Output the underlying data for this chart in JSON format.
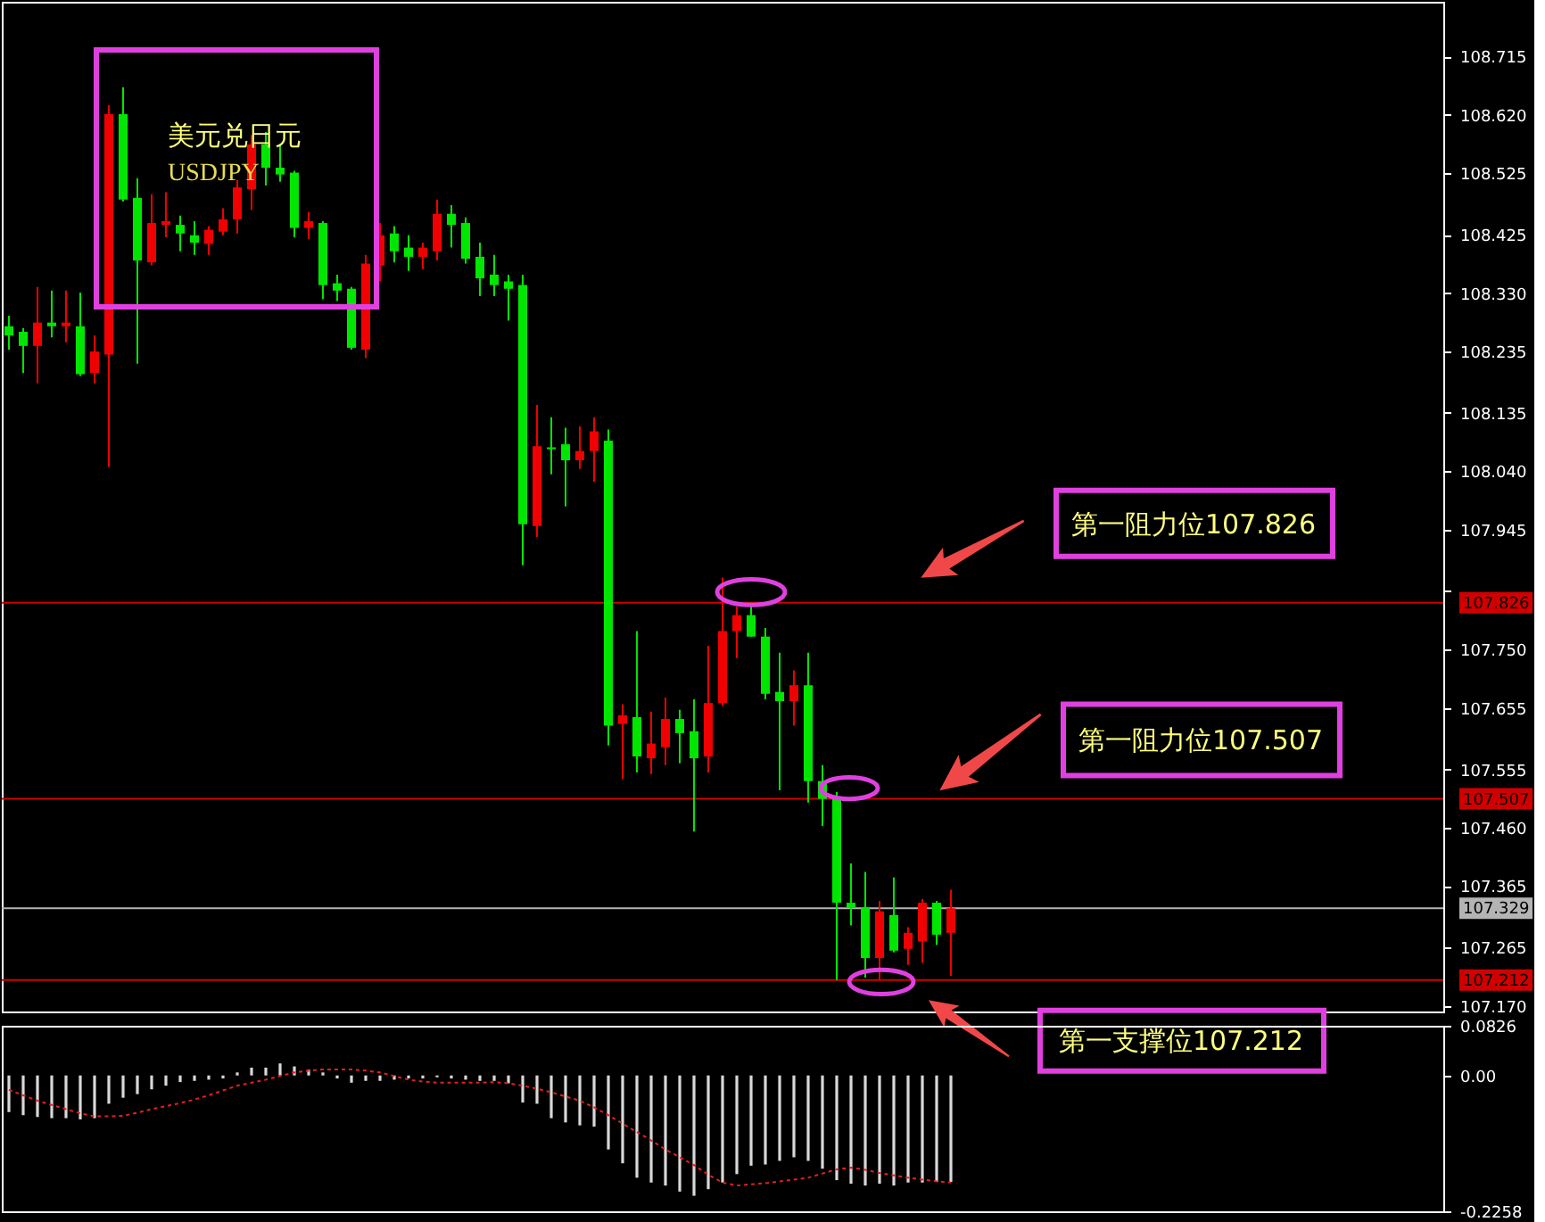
{
  "chart_data": [
    {
      "type": "candlestick",
      "title": "美元兑日元",
      "subtitle": "USDJPY",
      "categories": [
        null,
        null,
        null,
        null,
        null,
        null,
        null,
        null,
        null,
        null,
        null,
        null,
        null,
        null,
        null,
        null,
        null,
        null,
        null,
        null,
        null,
        null,
        null,
        null,
        null,
        null,
        null,
        null,
        null,
        null,
        null,
        null,
        null,
        null,
        null,
        null,
        null,
        null,
        null,
        null,
        null,
        null,
        null,
        null,
        null,
        null,
        null,
        null,
        null,
        null,
        null,
        null,
        null,
        null,
        null,
        null,
        null,
        null,
        null,
        null,
        null,
        null,
        null,
        null,
        null,
        null,
        null,
        null,
        null,
        null,
        null,
        null,
        null,
        null,
        null,
        null,
        null,
        null,
        null,
        null,
        null,
        null,
        null,
        null,
        null,
        null,
        null,
        null,
        null,
        null,
        null,
        null,
        null,
        null,
        null,
        null,
        null,
        null,
        null,
        null,
        null
      ],
      "ohlc": [
        [
          108.276,
          108.293,
          108.238,
          108.261
        ],
        [
          108.267,
          108.273,
          108.2,
          108.244
        ],
        [
          108.244,
          108.34,
          108.183,
          108.282
        ],
        [
          108.282,
          108.334,
          108.258,
          108.276
        ],
        [
          108.276,
          108.334,
          108.25,
          108.282
        ],
        [
          108.276,
          108.331,
          108.195,
          108.198
        ],
        [
          108.2,
          108.261,
          108.183,
          108.235
        ],
        [
          108.23,
          108.636,
          108.047,
          108.621
        ],
        [
          108.621,
          108.665,
          108.479,
          108.482
        ],
        [
          108.485,
          108.517,
          108.215,
          108.383
        ],
        [
          108.38,
          108.491,
          108.375,
          108.444
        ],
        [
          108.441,
          108.494,
          108.421,
          108.447
        ],
        [
          108.441,
          108.456,
          108.398,
          108.427
        ],
        [
          108.424,
          108.447,
          108.392,
          108.412
        ],
        [
          108.41,
          108.439,
          108.392,
          108.433
        ],
        [
          108.43,
          108.468,
          108.424,
          108.45
        ],
        [
          108.45,
          108.514,
          108.427,
          108.502
        ],
        [
          108.499,
          108.587,
          108.465,
          108.572
        ],
        [
          108.572,
          108.592,
          108.505,
          108.534
        ],
        [
          108.534,
          108.572,
          108.511,
          108.523
        ],
        [
          108.526,
          108.529,
          108.421,
          108.436
        ],
        [
          108.436,
          108.462,
          108.418,
          108.447
        ],
        [
          108.444,
          108.447,
          108.32,
          108.343
        ],
        [
          108.346,
          108.36,
          108.317,
          108.334
        ],
        [
          108.337,
          108.34,
          108.238,
          108.241
        ],
        [
          108.238,
          108.392,
          108.224,
          108.378
        ],
        [
          108.375,
          108.444,
          108.349,
          108.424
        ],
        [
          108.427,
          108.439,
          108.38,
          108.398
        ],
        [
          108.404,
          108.424,
          108.366,
          108.389
        ],
        [
          108.389,
          108.412,
          108.369,
          108.404
        ],
        [
          108.398,
          108.482,
          108.383,
          108.459
        ],
        [
          108.459,
          108.473,
          108.404,
          108.441
        ],
        [
          108.444,
          108.453,
          108.378,
          108.386
        ],
        [
          108.389,
          108.412,
          108.325,
          108.354
        ],
        [
          108.36,
          108.392,
          108.325,
          108.343
        ],
        [
          108.349,
          108.36,
          108.285,
          108.337
        ],
        [
          108.343,
          108.36,
          107.887,
          107.954
        ],
        [
          107.951,
          108.148,
          107.933,
          108.081
        ],
        [
          108.079,
          108.128,
          108.035,
          108.076
        ],
        [
          108.084,
          108.111,
          107.983,
          108.058
        ],
        [
          108.058,
          108.113,
          108.044,
          108.073
        ],
        [
          108.073,
          108.128,
          108.023,
          108.105
        ],
        [
          108.09,
          108.108,
          107.594,
          107.626
        ],
        [
          107.629,
          107.661,
          107.539,
          107.643
        ],
        [
          107.64,
          107.78,
          107.55,
          107.576
        ],
        [
          107.573,
          107.649,
          107.547,
          107.597
        ],
        [
          107.591,
          107.672,
          107.562,
          107.637
        ],
        [
          107.637,
          107.652,
          107.565,
          107.614
        ],
        [
          107.617,
          107.669,
          107.454,
          107.573
        ],
        [
          107.576,
          107.756,
          107.55,
          107.663
        ],
        [
          107.663,
          107.867,
          107.658,
          107.78
        ],
        [
          107.78,
          107.82,
          107.736,
          107.806
        ],
        [
          107.806,
          107.826,
          107.771,
          107.771
        ],
        [
          107.771,
          107.785,
          107.669,
          107.678
        ],
        [
          107.681,
          107.745,
          107.521,
          107.666
        ],
        [
          107.666,
          107.716,
          107.626,
          107.692
        ],
        [
          107.692,
          107.745,
          107.501,
          107.536
        ],
        [
          107.536,
          107.562,
          107.463,
          107.507
        ],
        [
          107.507,
          107.518,
          107.212,
          107.338
        ],
        [
          107.338,
          107.402,
          107.301,
          107.33
        ],
        [
          107.33,
          107.388,
          107.216,
          107.248
        ],
        [
          107.248,
          107.341,
          107.212,
          107.324
        ],
        [
          107.318,
          107.379,
          107.257,
          107.26
        ],
        [
          107.263,
          107.298,
          107.237,
          107.289
        ],
        [
          107.275,
          107.344,
          107.24,
          107.338
        ],
        [
          107.338,
          107.341,
          107.269,
          107.286
        ],
        [
          107.289,
          107.359,
          107.219,
          107.329
        ],
        null,
        null,
        null,
        null,
        null,
        null,
        null,
        null,
        null,
        null,
        null,
        null,
        null,
        null,
        null,
        null,
        null,
        null,
        null,
        null,
        null,
        null,
        null,
        null,
        null,
        null,
        null,
        null,
        null,
        null,
        null,
        null,
        null,
        null
      ],
      "colors": [
        "#00e600",
        "#00e600",
        "#f00000",
        "#00e600",
        "#f00000",
        "#00e600",
        "#f00000",
        "#f00000",
        "#00e600",
        "#00e600",
        "#f00000",
        "#f00000",
        "#00e600",
        "#00e600",
        "#f00000",
        "#f00000",
        "#f00000",
        "#f00000",
        "#00e600",
        "#00e600",
        "#00e600",
        "#f00000",
        "#00e600",
        "#00e600",
        "#00e600",
        "#f00000",
        "#f00000",
        "#00e600",
        "#00e600",
        "#f00000",
        "#f00000",
        "#00e600",
        "#00e600",
        "#00e600",
        "#00e600",
        "#00e600",
        "#00e600",
        "#f00000",
        "#00e600",
        "#00e600",
        "#f00000",
        "#f00000",
        "#00e600",
        "#f00000",
        "#00e600",
        "#f00000",
        "#f00000",
        "#00e600",
        "#00e600",
        "#f00000",
        "#f00000",
        "#f00000",
        "#00e600",
        "#00e600",
        "#00e600",
        "#f00000",
        "#00e600",
        "#00e600",
        "#00e600",
        "#00e600",
        "#00e600",
        "#f00000",
        "#00e600",
        "#f00000",
        "#f00000",
        "#00e600",
        "#f00000",
        null,
        null,
        null,
        null,
        null,
        null,
        null,
        null,
        null,
        null,
        null,
        null,
        null,
        null,
        null,
        null,
        null,
        null,
        null,
        null,
        null,
        null,
        null,
        null,
        null,
        null,
        null,
        null,
        null,
        null,
        null,
        null,
        null,
        null
      ],
      "ylim": [
        107.161,
        108.804
      ],
      "yticks": [
        108.715,
        {
          "value": 108.62,
          "label": "108.620"
        },
        108.525,
        108.425,
        {
          "value": 108.33,
          "label": "108.330"
        },
        108.235,
        108.135,
        {
          "value": 108.04,
          "label": "108.040"
        },
        107.945,
        {
          "value": 107.845,
          "label": null
        },
        {
          "value": 107.75,
          "label": "107.750"
        },
        107.655,
        107.555,
        {
          "value": 107.46,
          "label": "107.460"
        },
        107.365,
        107.265,
        {
          "value": 107.17,
          "label": "107.170"
        }
      ],
      "tick_labels": "y",
      "ref_lines": [
        {
          "axis": "y",
          "value": 107.826,
          "label": "107.826",
          "color": "#d00000"
        },
        {
          "axis": "y",
          "value": 107.507,
          "label": "107.507",
          "color": "#d00000"
        },
        {
          "axis": "y",
          "value": 107.212,
          "label": "107.212",
          "color": "#d00000"
        },
        {
          "axis": "y",
          "value": 107.329,
          "label": "107.329",
          "color": "#b4b4b4"
        }
      ],
      "annotations": [
        {
          "text": "第一阻力位107.826",
          "y": 107.826
        },
        {
          "text": "第一阻力位107.507",
          "y": 107.507
        },
        {
          "text": "第一支撑位107.212",
          "y": 107.212
        }
      ]
    },
    {
      "type": "bar",
      "categories": [
        null,
        null,
        null,
        null,
        null,
        null,
        null,
        null,
        null,
        null,
        null,
        null,
        null,
        null,
        null,
        null,
        null,
        null,
        null,
        null,
        null,
        null,
        null,
        null,
        null,
        null,
        null,
        null,
        null,
        null,
        null,
        null,
        null,
        null,
        null,
        null,
        null,
        null,
        null,
        null,
        null,
        null,
        null,
        null,
        null,
        null,
        null,
        null,
        null,
        null,
        null,
        null,
        null,
        null,
        null,
        null,
        null,
        null,
        null,
        null,
        null,
        null,
        null,
        null,
        null,
        null,
        null,
        null,
        null,
        null,
        null,
        null,
        null,
        null,
        null,
        null,
        null,
        null,
        null,
        null,
        null,
        null,
        null,
        null,
        null,
        null,
        null,
        null,
        null,
        null,
        null,
        null,
        null,
        null,
        null,
        null,
        null,
        null,
        null,
        null,
        null
      ],
      "series": [
        {
          "color": "#d8d8d8",
          "values": [
            -0.061,
            -0.066,
            -0.069,
            -0.071,
            -0.071,
            -0.073,
            -0.071,
            -0.047,
            -0.037,
            -0.031,
            -0.023,
            -0.017,
            -0.011,
            -0.009,
            -0.007,
            -0.005,
            0.005,
            0.013,
            0.013,
            0.02,
            0.015,
            0.01,
            0.005,
            -0.005,
            -0.012,
            -0.009,
            -0.009,
            -0.007,
            -0.005,
            -0.005,
            -0.003,
            -0.005,
            -0.007,
            -0.009,
            -0.009,
            -0.013,
            -0.045,
            -0.047,
            -0.071,
            -0.078,
            -0.083,
            -0.085,
            -0.123,
            -0.146,
            -0.17,
            -0.178,
            -0.183,
            -0.193,
            -0.2,
            -0.189,
            -0.178,
            -0.164,
            -0.15,
            -0.148,
            -0.142,
            -0.136,
            -0.142,
            -0.155,
            -0.174,
            -0.18,
            -0.183,
            -0.18,
            -0.183,
            -0.178,
            -0.178,
            -0.177,
            -0.177,
            null,
            null,
            null,
            null,
            null,
            null,
            null,
            null,
            null,
            null,
            null,
            null,
            null,
            null,
            null,
            null,
            null,
            null,
            null,
            null,
            null,
            null,
            null,
            null,
            null,
            null,
            null,
            null,
            null,
            null,
            null,
            null,
            null,
            null
          ]
        },
        {
          "type": "line",
          "color": "#e02020",
          "line_style": "dotted",
          "values": [
            -0.024,
            -0.033,
            -0.042,
            -0.049,
            -0.056,
            -0.063,
            -0.068,
            -0.068,
            -0.067,
            -0.062,
            -0.056,
            -0.051,
            -0.046,
            -0.04,
            -0.033,
            -0.025,
            -0.017,
            -0.012,
            -0.007,
            -0.001,
            0.005,
            0.008,
            0.01,
            0.01,
            0.01,
            0.008,
            0.005,
            -0.001,
            -0.007,
            -0.01,
            -0.012,
            -0.012,
            -0.012,
            -0.012,
            -0.011,
            -0.013,
            -0.017,
            -0.022,
            -0.028,
            -0.035,
            -0.042,
            -0.053,
            -0.066,
            -0.08,
            -0.094,
            -0.108,
            -0.123,
            -0.136,
            -0.149,
            -0.165,
            -0.178,
            -0.183,
            -0.181,
            -0.179,
            -0.176,
            -0.173,
            -0.17,
            -0.163,
            -0.156,
            -0.153,
            -0.157,
            -0.162,
            -0.166,
            -0.17,
            -0.173,
            -0.176,
            -0.178,
            null,
            null,
            null,
            null,
            null,
            null,
            null,
            null,
            null,
            null,
            null,
            null,
            null,
            null,
            null,
            null,
            null,
            null,
            null,
            null,
            null,
            null,
            null,
            null,
            null,
            null,
            null,
            null,
            null,
            null,
            null,
            null,
            null,
            null
          ]
        }
      ],
      "ylim": [
        -0.2258,
        0.0826
      ],
      "yticks": [
        0.0826,
        {
          "value": 0,
          "label": "0.00"
        },
        -0.2258
      ],
      "tick_labels": "y"
    }
  ]
}
